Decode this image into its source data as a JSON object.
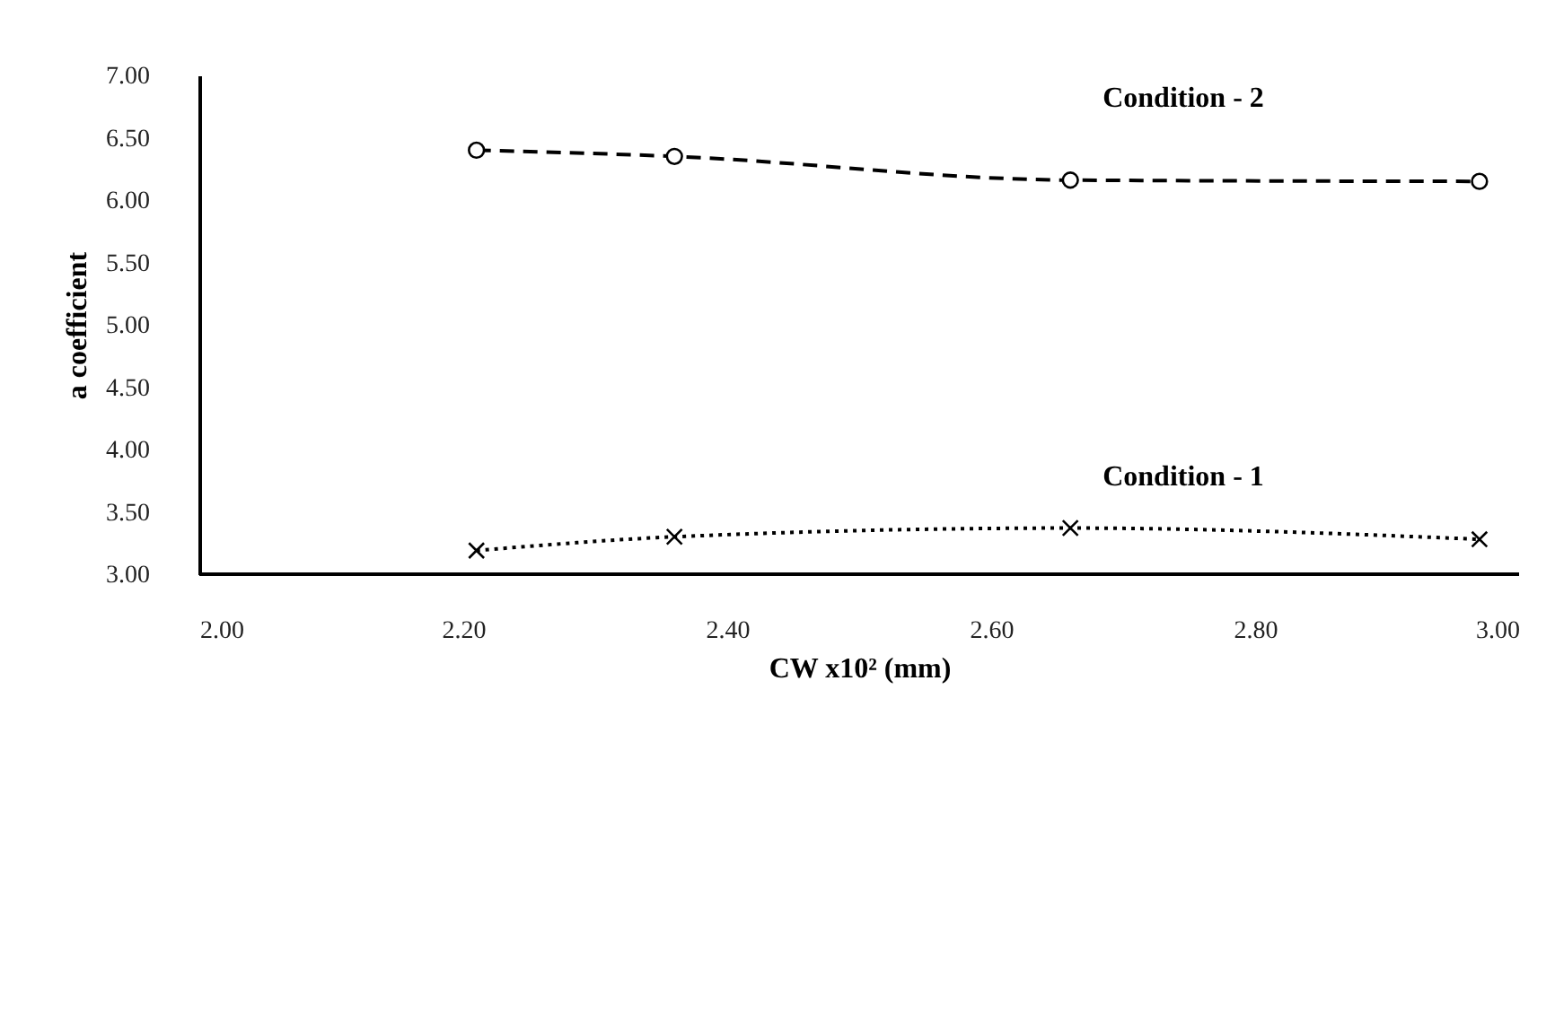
{
  "chart_data": {
    "type": "line",
    "xlabel": "CW x10² (mm)",
    "ylabel": "a coefficient",
    "x": [
      2.21,
      2.36,
      2.66,
      2.97
    ],
    "series": [
      {
        "name": "Condition - 2",
        "color": "#000000",
        "values": [
          6.4,
          6.35,
          6.16,
          6.15
        ],
        "marker": "circle",
        "line_style": "dashed"
      },
      {
        "name": "Condition - 1",
        "color": "#000000",
        "values": [
          3.19,
          3.3,
          3.37,
          3.28
        ],
        "marker": "cross",
        "line_style": "dotted"
      }
    ],
    "xlim": [
      2.0,
      3.0
    ],
    "xticks": [
      {
        "value": 2.0,
        "label": "2.00"
      },
      {
        "value": 2.2,
        "label": "2.20"
      },
      {
        "value": 2.4,
        "label": "2.40"
      },
      {
        "value": 2.6,
        "label": "2.60"
      },
      {
        "value": 2.8,
        "label": "2.80"
      },
      {
        "value": 3.0,
        "label": "3.00"
      }
    ],
    "ylim": [
      3.0,
      7.0
    ],
    "yticks": [
      {
        "value": 3.0,
        "label": "3.00"
      },
      {
        "value": 3.5,
        "label": "3.50"
      },
      {
        "value": 4.0,
        "label": "4.00"
      },
      {
        "value": 4.5,
        "label": "4.50"
      },
      {
        "value": 5.0,
        "label": "5.00"
      },
      {
        "value": 5.5,
        "label": "5.50"
      },
      {
        "value": 6.0,
        "label": "6.00"
      },
      {
        "value": 6.5,
        "label": "6.50"
      },
      {
        "value": 7.0,
        "label": "7.00"
      }
    ],
    "grid": false
  }
}
